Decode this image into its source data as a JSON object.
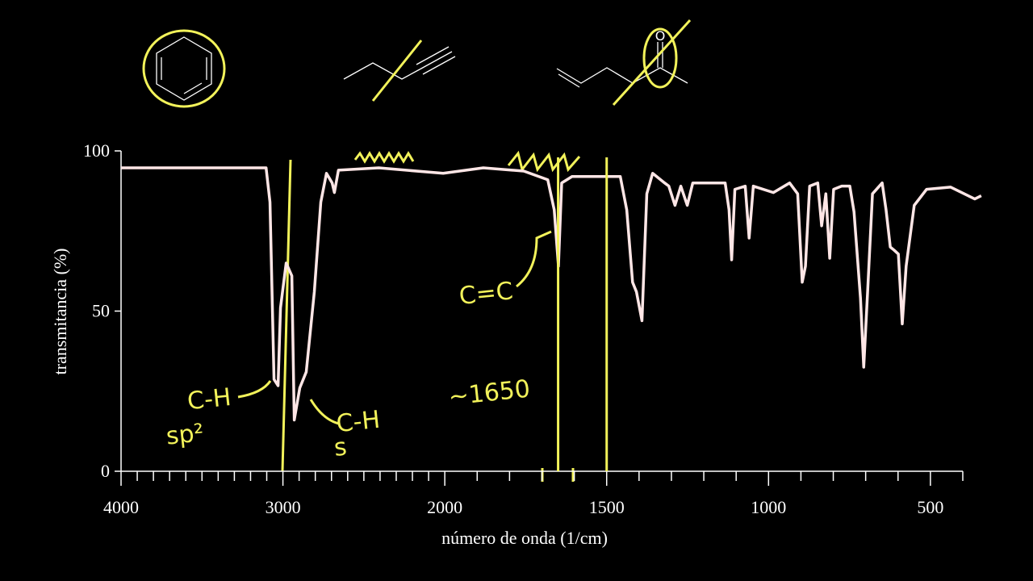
{
  "chart_data": {
    "type": "line",
    "xlabel": "número de onda (1/cm)",
    "ylabel": "transmitancia (%)",
    "xlim": [
      4000,
      400
    ],
    "ylim": [
      0,
      100
    ],
    "xbreak": 2000,
    "xticks": [
      4000,
      3000,
      2000,
      1500,
      1000,
      500
    ],
    "xminorticks": [
      3900,
      3800,
      3700,
      3600,
      3500,
      3400,
      3300,
      3200,
      3100,
      2900,
      2800,
      2700,
      2600,
      2500,
      2400,
      2300,
      2200,
      2100,
      1900,
      1800,
      1700,
      1600,
      1400,
      1300,
      1200,
      1100,
      900,
      800,
      700,
      600,
      400
    ],
    "yticks": [
      0,
      50,
      100
    ],
    "series": [
      {
        "color": "#ffe6e6",
        "x": [
          4000,
          3104,
          3080,
          3055,
          3030,
          3015,
          2980,
          2945,
          2930,
          2896,
          2856,
          2806,
          2766,
          2731,
          2696,
          2682,
          2657,
          2408,
          2010,
          1881,
          1756,
          1682,
          1662,
          1649,
          1639,
          1607,
          1458,
          1438,
          1420,
          1408,
          1391,
          1376,
          1358,
          1321,
          1308,
          1289,
          1271,
          1251,
          1234,
          1134,
          1122,
          1114,
          1104,
          1072,
          1060,
          1047,
          985,
          935,
          910,
          896,
          886,
          873,
          848,
          836,
          823,
          811,
          799,
          774,
          749,
          736,
          716,
          706,
          694,
          679,
          649,
          637,
          624,
          612,
          599,
          587,
          575,
          550,
          512,
          438,
          363,
          343
        ],
        "values": [
          94.7,
          94.7,
          84,
          28.7,
          26.7,
          51,
          65,
          61,
          16,
          26,
          31,
          56,
          84,
          93,
          90,
          87,
          94,
          94.7,
          93,
          94.7,
          93.7,
          91,
          81.6,
          64,
          90,
          92,
          92,
          81.6,
          59,
          56,
          47,
          86.6,
          93,
          90,
          89,
          83,
          89,
          83,
          90,
          90,
          81.6,
          66,
          88,
          89,
          72.8,
          89,
          87,
          90,
          86.6,
          59,
          64,
          89,
          90,
          76.6,
          86.6,
          66.5,
          88,
          89,
          89,
          81,
          54,
          32.5,
          56,
          86.6,
          90,
          81.6,
          70,
          69,
          67.8,
          46,
          64,
          83,
          88,
          88.7,
          85,
          86
        ]
      }
    ],
    "annotation_color": "#f2f25a",
    "vlines": [
      1650,
      1500
    ],
    "annotations": [
      {
        "text": "C-H",
        "x": 3450,
        "y": 20
      },
      {
        "text": "sp²",
        "x": 3600,
        "y": 9
      },
      {
        "text": "C-H",
        "x": 2530,
        "y": 13
      },
      {
        "text": "s",
        "x": 2640,
        "y": 5
      },
      {
        "text": "C=C",
        "x": 1870,
        "y": 53
      },
      {
        "text": "~1650",
        "x": 1860,
        "y": 22
      }
    ]
  }
}
